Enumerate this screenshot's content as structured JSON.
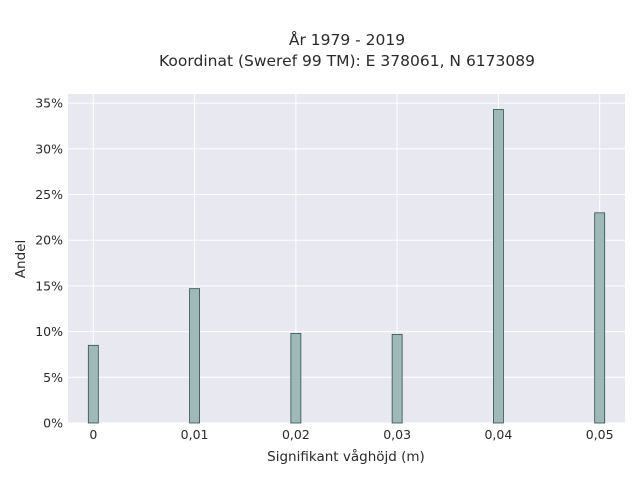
{
  "chart_data": {
    "type": "bar",
    "title_line1": "År 1979 - 2019",
    "title_line2": "Koordinat (Sweref 99 TM): E 378061, N 6173089",
    "xlabel": "Signifikant våghöjd (m)",
    "ylabel": "Andel",
    "x_ticks": [
      "0",
      "0,01",
      "0,02",
      "0,03",
      "0,04",
      "0,05"
    ],
    "y_ticks": [
      "0%",
      "5%",
      "10%",
      "15%",
      "20%",
      "25%",
      "30%",
      "35%"
    ],
    "x": [
      0,
      0.01,
      0.02,
      0.03,
      0.04,
      0.05
    ],
    "values": [
      8.5,
      14.7,
      9.8,
      9.7,
      34.3,
      23.0
    ],
    "xlim": [
      -0.0025,
      0.0525
    ],
    "ylim": [
      0,
      36
    ],
    "grid": true,
    "bar_color": "#9fb8b8",
    "bar_edge_color": "#2f4f4f",
    "plot_background": "#e8e8f0"
  }
}
